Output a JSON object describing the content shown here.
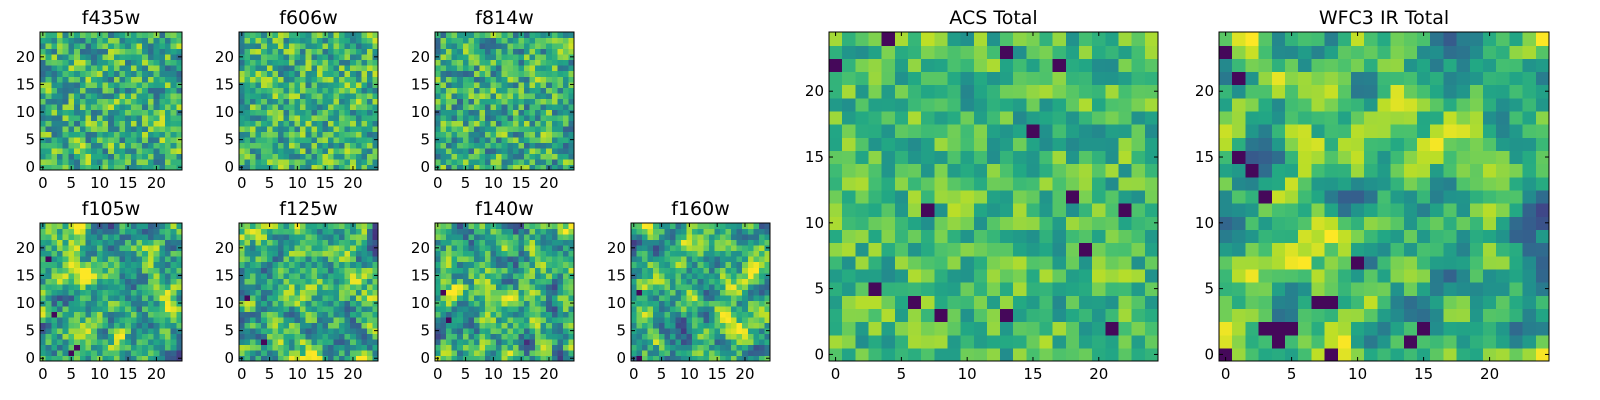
{
  "chart_data": [
    {
      "type": "heatmap",
      "title": "f435w",
      "xticks": [
        "0",
        "5",
        "10",
        "15",
        "20"
      ],
      "yticks": [
        "0",
        "5",
        "10",
        "15",
        "20"
      ],
      "xlim": [
        -0.5,
        24.5
      ],
      "ylim": [
        -0.5,
        24.5
      ],
      "grid_size": [
        25,
        25
      ],
      "colormap": "viridis",
      "seed": 11,
      "smooth": 0.1,
      "level": 0.62,
      "spread": 0.5,
      "dark_sites": []
    },
    {
      "type": "heatmap",
      "title": "f606w",
      "xticks": [
        "0",
        "5",
        "10",
        "15",
        "20"
      ],
      "yticks": [
        "0",
        "5",
        "10",
        "15",
        "20"
      ],
      "xlim": [
        -0.5,
        24.5
      ],
      "ylim": [
        -0.5,
        24.5
      ],
      "grid_size": [
        25,
        25
      ],
      "colormap": "viridis",
      "seed": 23,
      "smooth": 0.1,
      "level": 0.64,
      "spread": 0.48,
      "dark_sites": []
    },
    {
      "type": "heatmap",
      "title": "f814w",
      "xticks": [
        "0",
        "5",
        "10",
        "15",
        "20"
      ],
      "yticks": [
        "0",
        "5",
        "10",
        "15",
        "20"
      ],
      "xlim": [
        -0.5,
        24.5
      ],
      "ylim": [
        -0.5,
        24.5
      ],
      "grid_size": [
        25,
        25
      ],
      "colormap": "viridis",
      "seed": 37,
      "smooth": 0.1,
      "level": 0.62,
      "spread": 0.5,
      "dark_sites": []
    },
    {
      "type": "heatmap",
      "title": "f105w",
      "xticks": [
        "0",
        "5",
        "10",
        "15",
        "20"
      ],
      "yticks": [
        "0",
        "5",
        "10",
        "15",
        "20"
      ],
      "xlim": [
        -0.5,
        24.5
      ],
      "ylim": [
        -0.5,
        24.5
      ],
      "grid_size": [
        25,
        25
      ],
      "colormap": "viridis",
      "seed": 41,
      "smooth": 0.45,
      "level": 0.62,
      "spread": 0.55,
      "dark_sites": [
        [
          5,
          1
        ],
        [
          6,
          2
        ],
        [
          2,
          8
        ],
        [
          1,
          18
        ]
      ]
    },
    {
      "type": "heatmap",
      "title": "f125w",
      "xticks": [
        "0",
        "5",
        "10",
        "15",
        "20"
      ],
      "yticks": [
        "0",
        "5",
        "10",
        "15",
        "20"
      ],
      "xlim": [
        -0.5,
        24.5
      ],
      "ylim": [
        -0.5,
        24.5
      ],
      "grid_size": [
        25,
        25
      ],
      "colormap": "viridis",
      "seed": 53,
      "smooth": 0.45,
      "level": 0.62,
      "spread": 0.55,
      "dark_sites": [
        [
          4,
          3
        ],
        [
          1,
          11
        ]
      ]
    },
    {
      "type": "heatmap",
      "title": "f140w",
      "xticks": [
        "0",
        "5",
        "10",
        "15",
        "20"
      ],
      "yticks": [
        "0",
        "5",
        "10",
        "15",
        "20"
      ],
      "xlim": [
        -0.5,
        24.5
      ],
      "ylim": [
        -0.5,
        24.5
      ],
      "grid_size": [
        25,
        25
      ],
      "colormap": "viridis",
      "seed": 67,
      "smooth": 0.45,
      "level": 0.62,
      "spread": 0.55,
      "dark_sites": [
        [
          1,
          12
        ],
        [
          2,
          7
        ]
      ]
    },
    {
      "type": "heatmap",
      "title": "f160w",
      "xticks": [
        "0",
        "5",
        "10",
        "15",
        "20"
      ],
      "yticks": [
        "0",
        "5",
        "10",
        "15",
        "20"
      ],
      "xlim": [
        -0.5,
        24.5
      ],
      "ylim": [
        -0.5,
        24.5
      ],
      "grid_size": [
        25,
        25
      ],
      "colormap": "viridis",
      "seed": 79,
      "smooth": 0.5,
      "level": 0.62,
      "spread": 0.55,
      "dark_sites": [
        [
          1,
          0
        ],
        [
          1,
          12
        ]
      ]
    },
    {
      "type": "heatmap",
      "title": "ACS Total",
      "xticks": [
        "0",
        "5",
        "10",
        "15",
        "20"
      ],
      "yticks": [
        "0",
        "5",
        "10",
        "15",
        "20"
      ],
      "xlim": [
        -0.5,
        24.5
      ],
      "ylim": [
        -0.5,
        24.5
      ],
      "grid_size": [
        25,
        25
      ],
      "colormap": "viridis",
      "seed": 97,
      "smooth": 0.15,
      "level": 0.68,
      "spread": 0.36,
      "dark_sites": [
        [
          4,
          24
        ],
        [
          13,
          23
        ],
        [
          17,
          22
        ],
        [
          0,
          22
        ],
        [
          3,
          5
        ],
        [
          6,
          4
        ],
        [
          8,
          3
        ],
        [
          13,
          3
        ],
        [
          21,
          2
        ],
        [
          22,
          11
        ],
        [
          19,
          8
        ],
        [
          15,
          17
        ],
        [
          7,
          11
        ],
        [
          18,
          12
        ]
      ]
    },
    {
      "type": "heatmap",
      "title": "WFC3 IR Total",
      "xticks": [
        "0",
        "5",
        "10",
        "15",
        "20"
      ],
      "yticks": [
        "0",
        "5",
        "10",
        "15",
        "20"
      ],
      "xlim": [
        -0.5,
        24.5
      ],
      "ylim": [
        -0.5,
        24.5
      ],
      "grid_size": [
        25,
        25
      ],
      "colormap": "viridis",
      "seed": 113,
      "smooth": 0.55,
      "level": 0.66,
      "spread": 0.5,
      "dark_sites": [
        [
          0,
          23
        ],
        [
          1,
          21
        ],
        [
          1,
          15
        ],
        [
          2,
          14
        ],
        [
          3,
          12
        ],
        [
          7,
          4
        ],
        [
          8,
          4
        ],
        [
          3,
          2
        ],
        [
          4,
          2
        ],
        [
          5,
          2
        ],
        [
          4,
          1
        ],
        [
          8,
          0
        ],
        [
          0,
          0
        ],
        [
          14,
          1
        ],
        [
          15,
          2
        ],
        [
          10,
          7
        ]
      ]
    }
  ]
}
